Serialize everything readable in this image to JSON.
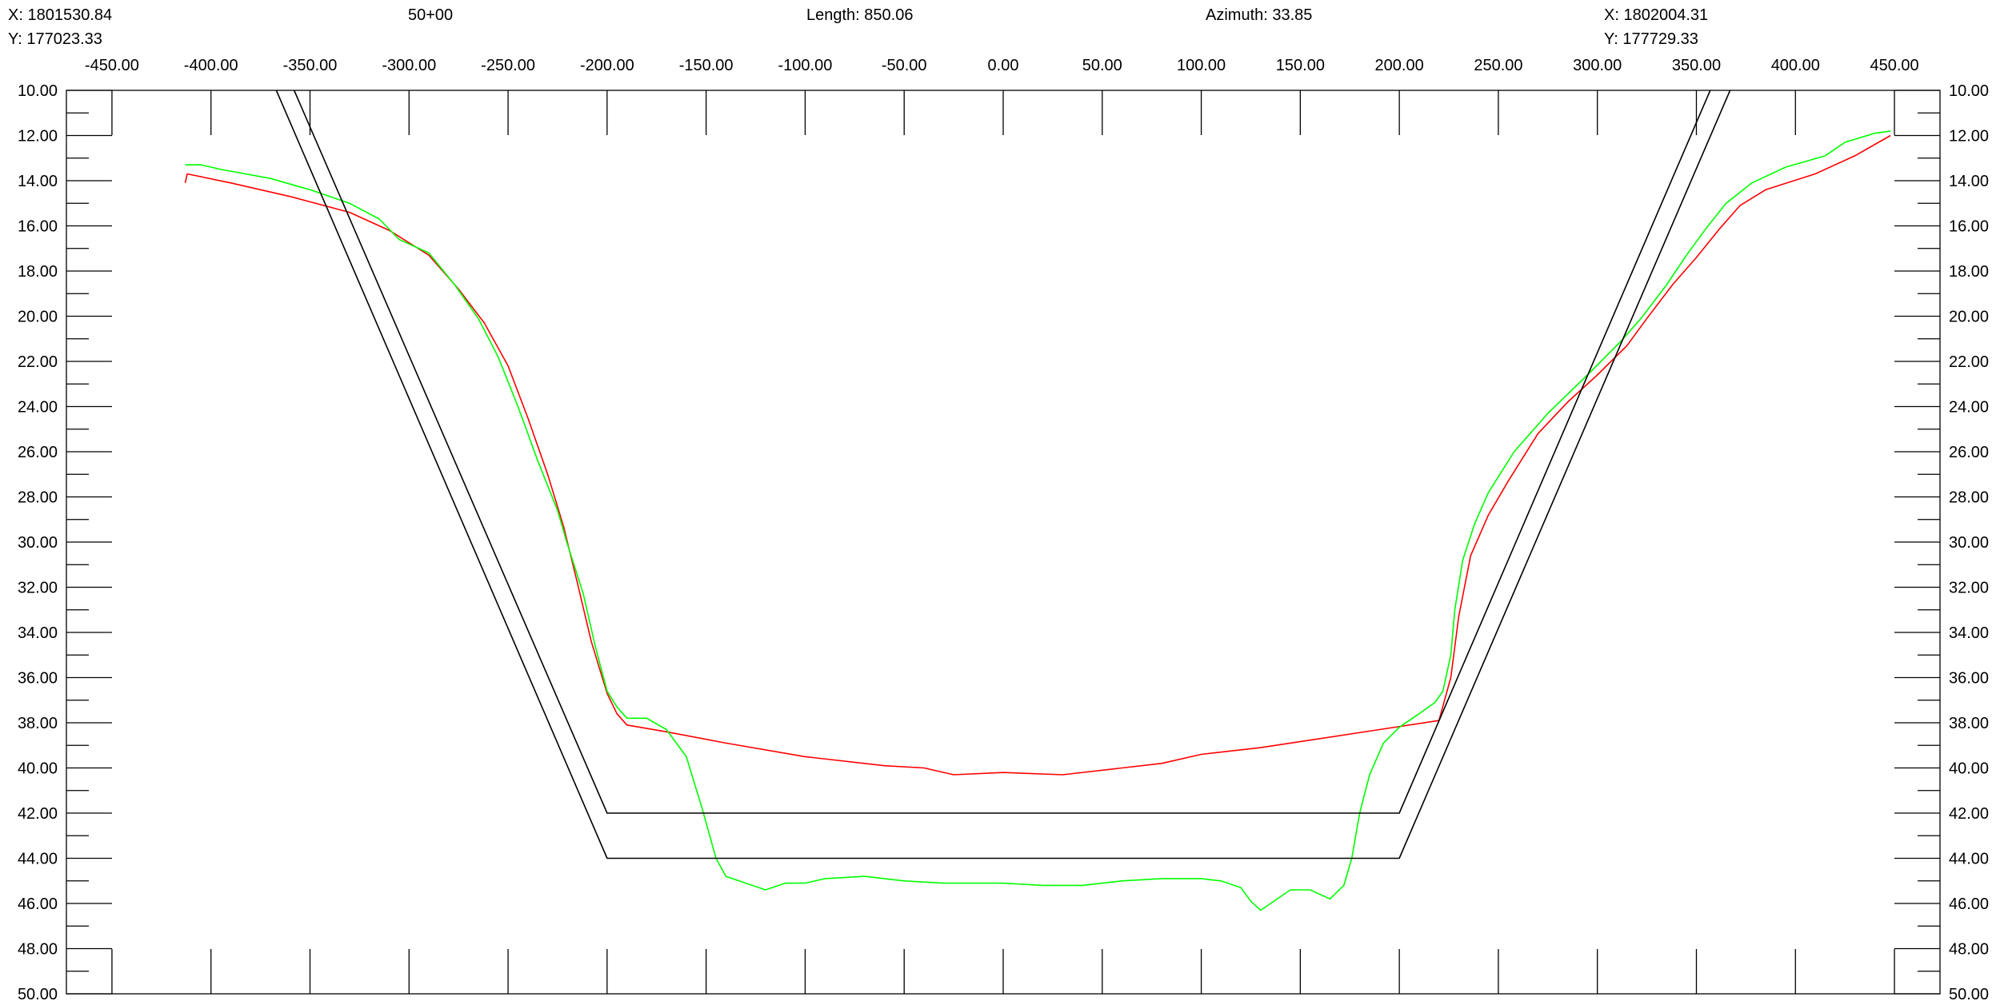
{
  "header": {
    "start_x": "X: 1801530.84",
    "start_y": "Y: 177023.33",
    "station": "50+00",
    "length": "Length: 850.06",
    "azimuth": "Azimuth: 33.85",
    "end_x": "X: 1802004.31",
    "end_y": "Y: 177729.33"
  },
  "colors": {
    "existing_ground": "#ff0000",
    "survey_profile": "#00ff00",
    "design_section": "#000000",
    "frame": "#000000"
  },
  "chart_data": {
    "type": "line",
    "title": "",
    "xlabel": "",
    "ylabel": "",
    "xlim": [
      -473,
      473
    ],
    "ylim": [
      50,
      10
    ],
    "y_axis_inverted": true,
    "x_ticks": [
      "-450.00",
      "-400.00",
      "-350.00",
      "-300.00",
      "-250.00",
      "-200.00",
      "-150.00",
      "-100.00",
      "-50.00",
      "0.00",
      "50.00",
      "100.00",
      "150.00",
      "200.00",
      "250.00",
      "300.00",
      "350.00",
      "400.00",
      "450.00"
    ],
    "y_ticks": [
      "10.00",
      "12.00",
      "14.00",
      "16.00",
      "18.00",
      "20.00",
      "22.00",
      "24.00",
      "26.00",
      "28.00",
      "30.00",
      "32.00",
      "34.00",
      "36.00",
      "38.00",
      "40.00",
      "42.00",
      "44.00",
      "46.00",
      "48.00",
      "50.00"
    ],
    "grid": false,
    "series": [
      {
        "color": "#ff0000",
        "points": [
          [
            -413,
            14.1
          ],
          [
            -412,
            13.7
          ],
          [
            -390,
            14.1
          ],
          [
            -360,
            14.7
          ],
          [
            -330,
            15.4
          ],
          [
            -310,
            16.2
          ],
          [
            -290,
            17.3
          ],
          [
            -275,
            18.8
          ],
          [
            -262,
            20.3
          ],
          [
            -250,
            22.2
          ],
          [
            -240,
            24.5
          ],
          [
            -230,
            27.0
          ],
          [
            -222,
            29.3
          ],
          [
            -215,
            31.8
          ],
          [
            -208,
            34.4
          ],
          [
            -200,
            36.7
          ],
          [
            -195,
            37.6
          ],
          [
            -190,
            38.1
          ],
          [
            -170,
            38.4
          ],
          [
            -140,
            38.9
          ],
          [
            -100,
            39.5
          ],
          [
            -60,
            39.9
          ],
          [
            -40,
            40.0
          ],
          [
            -25,
            40.3
          ],
          [
            0,
            40.2
          ],
          [
            30,
            40.3
          ],
          [
            60,
            40.0
          ],
          [
            80,
            39.8
          ],
          [
            100,
            39.4
          ],
          [
            130,
            39.1
          ],
          [
            160,
            38.7
          ],
          [
            190,
            38.3
          ],
          [
            220,
            37.9
          ],
          [
            226,
            36.0
          ],
          [
            230,
            33.3
          ],
          [
            236,
            30.6
          ],
          [
            245,
            28.8
          ],
          [
            255,
            27.3
          ],
          [
            270,
            25.2
          ],
          [
            285,
            23.8
          ],
          [
            300,
            22.6
          ],
          [
            315,
            21.3
          ],
          [
            325,
            20.1
          ],
          [
            338,
            18.6
          ],
          [
            350,
            17.4
          ],
          [
            362,
            16.1
          ],
          [
            372,
            15.1
          ],
          [
            385,
            14.4
          ],
          [
            410,
            13.7
          ],
          [
            430,
            12.9
          ],
          [
            448,
            12.0
          ]
        ]
      },
      {
        "color": "#00ff00",
        "points": [
          [
            -413,
            13.3
          ],
          [
            -405,
            13.3
          ],
          [
            -395,
            13.5
          ],
          [
            -370,
            13.9
          ],
          [
            -350,
            14.4
          ],
          [
            -330,
            15.0
          ],
          [
            -315,
            15.7
          ],
          [
            -305,
            16.6
          ],
          [
            -290,
            17.2
          ],
          [
            -277,
            18.6
          ],
          [
            -265,
            20.1
          ],
          [
            -255,
            21.8
          ],
          [
            -245,
            24.0
          ],
          [
            -235,
            26.4
          ],
          [
            -225,
            28.6
          ],
          [
            -220,
            30.1
          ],
          [
            -212,
            32.3
          ],
          [
            -206,
            34.6
          ],
          [
            -200,
            36.6
          ],
          [
            -195,
            37.3
          ],
          [
            -190,
            37.8
          ],
          [
            -180,
            37.8
          ],
          [
            -170,
            38.3
          ],
          [
            -160,
            39.5
          ],
          [
            -152,
            41.8
          ],
          [
            -145,
            44.0
          ],
          [
            -140,
            44.8
          ],
          [
            -130,
            45.1
          ],
          [
            -120,
            45.4
          ],
          [
            -110,
            45.1
          ],
          [
            -100,
            45.1
          ],
          [
            -90,
            44.9
          ],
          [
            -70,
            44.8
          ],
          [
            -50,
            45.0
          ],
          [
            -30,
            45.1
          ],
          [
            0,
            45.1
          ],
          [
            20,
            45.2
          ],
          [
            40,
            45.2
          ],
          [
            60,
            45.0
          ],
          [
            80,
            44.9
          ],
          [
            100,
            44.9
          ],
          [
            110,
            45.0
          ],
          [
            120,
            45.3
          ],
          [
            125,
            45.9
          ],
          [
            130,
            46.3
          ],
          [
            135,
            46.0
          ],
          [
            145,
            45.4
          ],
          [
            155,
            45.4
          ],
          [
            165,
            45.8
          ],
          [
            172,
            45.2
          ],
          [
            176,
            44.0
          ],
          [
            180,
            42.0
          ],
          [
            185,
            40.3
          ],
          [
            192,
            38.9
          ],
          [
            200,
            38.2
          ],
          [
            210,
            37.6
          ],
          [
            218,
            37.1
          ],
          [
            222,
            36.6
          ],
          [
            226,
            35.0
          ],
          [
            228,
            33.0
          ],
          [
            232,
            30.8
          ],
          [
            238,
            29.2
          ],
          [
            245,
            27.8
          ],
          [
            258,
            26.0
          ],
          [
            275,
            24.3
          ],
          [
            295,
            22.6
          ],
          [
            312,
            21.1
          ],
          [
            322,
            20.1
          ],
          [
            335,
            18.6
          ],
          [
            345,
            17.3
          ],
          [
            355,
            16.1
          ],
          [
            365,
            15.0
          ],
          [
            378,
            14.1
          ],
          [
            395,
            13.4
          ],
          [
            415,
            12.9
          ],
          [
            425,
            12.3
          ],
          [
            440,
            11.9
          ],
          [
            448,
            11.8
          ]
        ]
      },
      {
        "color": "#000000",
        "points": [
          [
            -367,
            10.0
          ],
          [
            -200,
            44.0
          ],
          [
            200,
            44.0
          ],
          [
            367,
            10.0
          ]
        ]
      },
      {
        "color": "#000000",
        "points": [
          [
            -358,
            10.0
          ],
          [
            -200,
            42.0
          ],
          [
            200,
            42.0
          ],
          [
            357,
            10.0
          ]
        ]
      }
    ]
  }
}
